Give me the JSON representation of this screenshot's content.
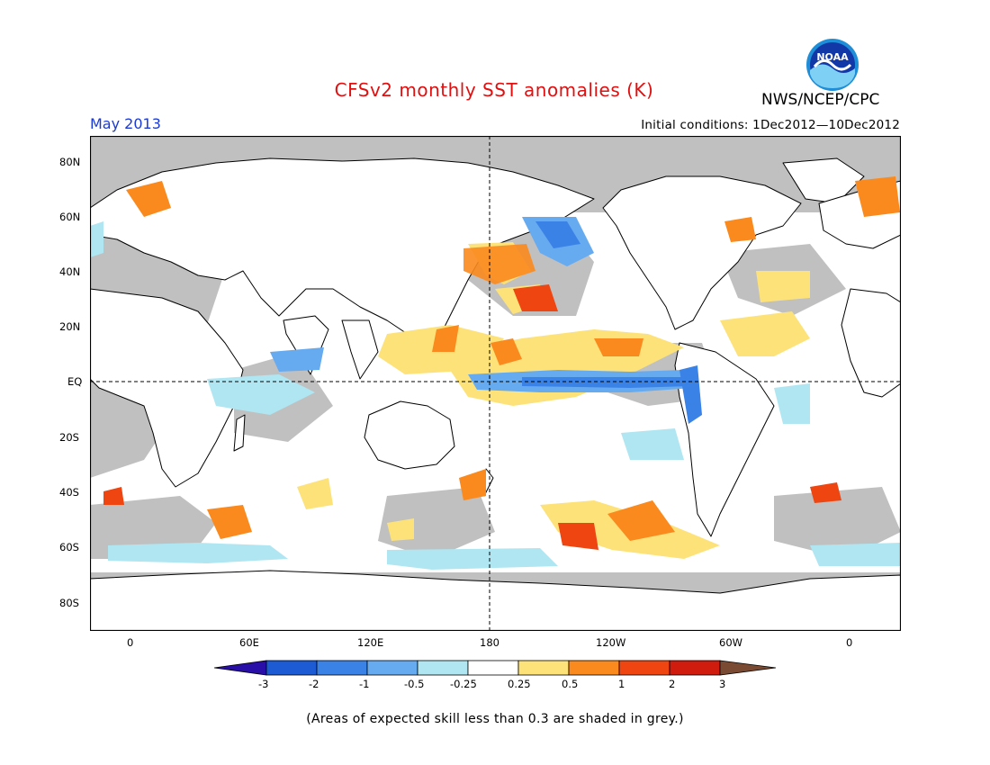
{
  "title": "CFSv2 monthly SST anomalies (K)",
  "agency": "NWS/NCEP/CPC",
  "logo_text": "NOAA",
  "forecast_month": "May 2013",
  "initial_conditions": "Initial conditions: 1Dec2012—10Dec2012",
  "skill_note": "(Areas of expected skill less than 0.3 are shaded in grey.)",
  "map": {
    "lat_labels": [
      "80N",
      "60N",
      "40N",
      "20N",
      "EQ",
      "20S",
      "40S",
      "60S",
      "80S"
    ],
    "lon_labels": [
      "0",
      "60E",
      "120E",
      "180",
      "120W",
      "60W",
      "0"
    ],
    "reference_lines": [
      "equator",
      "dateline"
    ],
    "colors": {
      "land": "#ffffff",
      "low_skill": "#c0c0c0",
      "coastline": "#000000"
    }
  },
  "colorbar": {
    "labels": [
      "-3",
      "-2",
      "-1",
      "-0.5",
      "-0.25",
      "0.25",
      "0.5",
      "1",
      "2",
      "3"
    ],
    "colors": [
      "#2a0ea8",
      "#1c5bd4",
      "#3b82e6",
      "#66aaf0",
      "#b0e6f2",
      "#ffffff",
      "#fde27a",
      "#fb8a1e",
      "#ee4511",
      "#cf1c0f",
      "#a3080c",
      "#7b4a32"
    ]
  }
}
